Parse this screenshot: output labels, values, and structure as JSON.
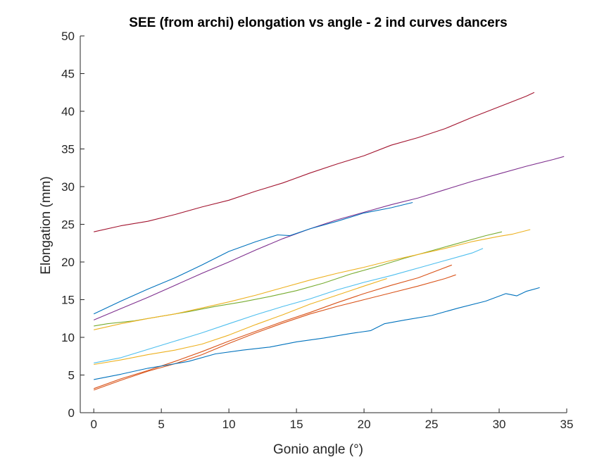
{
  "chart_data": {
    "type": "line",
    "title": "SEE (from archi) elongation vs angle - 2 ind curves dancers",
    "xlabel": "Gonio angle (°)",
    "ylabel": "Elongation (mm)",
    "xlim": [
      -1,
      35
    ],
    "ylim": [
      0,
      50
    ],
    "xticks": [
      "0",
      "5",
      "10",
      "15",
      "20",
      "25",
      "30",
      "35"
    ],
    "yticks": [
      "0",
      "5",
      "10",
      "15",
      "20",
      "25",
      "30",
      "35",
      "40",
      "45",
      "50"
    ],
    "grid": false,
    "legend": "none",
    "series": [
      {
        "color": "#A2142F",
        "x": [
          0,
          2,
          4,
          6,
          8,
          10,
          12,
          14,
          16,
          18,
          20,
          22,
          24,
          26,
          28,
          30,
          32,
          32.6
        ],
        "y": [
          24.0,
          24.8,
          25.4,
          26.3,
          27.3,
          28.2,
          29.4,
          30.5,
          31.8,
          33.0,
          34.1,
          35.5,
          36.5,
          37.7,
          39.2,
          40.6,
          42.0,
          42.5
        ]
      },
      {
        "color": "#7E2F8E",
        "x": [
          0,
          2,
          4,
          6,
          8,
          10,
          12,
          14,
          16,
          18,
          20,
          22,
          24,
          26,
          28,
          30,
          32,
          34,
          34.8
        ],
        "y": [
          12.3,
          13.8,
          15.3,
          16.9,
          18.5,
          20.0,
          21.6,
          23.1,
          24.4,
          25.6,
          26.6,
          27.6,
          28.5,
          29.6,
          30.7,
          31.7,
          32.7,
          33.6,
          34.0
        ]
      },
      {
        "color": "#0072BD",
        "x": [
          0,
          2,
          4,
          6,
          8,
          10,
          12,
          13.6,
          14.5,
          16,
          18,
          20,
          22,
          23.6
        ],
        "y": [
          13.1,
          14.8,
          16.4,
          17.9,
          19.6,
          21.4,
          22.7,
          23.6,
          23.5,
          24.4,
          25.4,
          26.5,
          27.2,
          27.9
        ]
      },
      {
        "color": "#77AC30",
        "x": [
          0,
          1,
          3,
          5,
          7,
          9,
          11,
          13,
          15,
          17,
          19,
          21,
          23,
          25,
          27,
          29,
          30.2
        ],
        "y": [
          11.5,
          11.8,
          12.2,
          12.8,
          13.4,
          14.1,
          14.7,
          15.4,
          16.2,
          17.2,
          18.4,
          19.4,
          20.5,
          21.5,
          22.5,
          23.5,
          24.0
        ]
      },
      {
        "color": "#EDB120",
        "x": [
          0,
          2,
          4,
          6,
          8,
          10,
          12,
          14,
          16,
          18,
          20,
          22,
          24,
          26,
          28,
          30,
          31,
          32.3
        ],
        "y": [
          11.0,
          11.8,
          12.5,
          13.1,
          13.9,
          14.7,
          15.6,
          16.6,
          17.6,
          18.5,
          19.3,
          20.2,
          21.0,
          21.8,
          22.7,
          23.4,
          23.7,
          24.3
        ]
      },
      {
        "color": "#4DBEEE",
        "x": [
          0,
          2,
          4,
          6,
          8,
          10,
          12,
          14,
          16,
          18,
          20,
          22,
          24,
          26,
          28,
          28.8
        ],
        "y": [
          6.6,
          7.3,
          8.4,
          9.5,
          10.6,
          11.8,
          13.0,
          14.1,
          15.1,
          16.3,
          17.3,
          18.2,
          19.2,
          20.2,
          21.2,
          21.8
        ]
      },
      {
        "color": "#EDB120",
        "x": [
          0,
          2,
          4,
          6,
          8,
          10,
          12,
          14,
          16,
          18,
          20,
          21.7
        ],
        "y": [
          6.4,
          7.0,
          7.7,
          8.3,
          9.1,
          10.3,
          11.7,
          13.0,
          14.4,
          15.6,
          16.8,
          17.8
        ]
      },
      {
        "color": "#D95319",
        "x": [
          0,
          2,
          4,
          6,
          8,
          10,
          12,
          14,
          16,
          18,
          20,
          22,
          24,
          26.5
        ],
        "y": [
          3.2,
          4.5,
          5.6,
          6.8,
          8.1,
          9.5,
          10.8,
          12.1,
          13.3,
          14.6,
          15.8,
          16.9,
          17.9,
          19.6
        ]
      },
      {
        "color": "#D95319",
        "x": [
          0,
          2,
          4,
          6,
          8,
          10,
          12,
          14,
          16,
          18,
          20,
          22,
          24,
          26,
          26.8
        ],
        "y": [
          3.0,
          4.3,
          5.5,
          6.5,
          7.7,
          9.2,
          10.6,
          11.9,
          13.1,
          14.1,
          15.0,
          15.9,
          16.8,
          17.8,
          18.3
        ]
      },
      {
        "color": "#0072BD",
        "x": [
          0,
          2,
          4,
          6,
          7,
          9,
          11,
          13,
          15,
          17,
          19,
          20.5,
          21.5,
          23,
          25,
          27,
          29,
          30.5,
          31.3,
          32,
          33
        ],
        "y": [
          4.4,
          5.1,
          5.9,
          6.5,
          6.8,
          7.8,
          8.3,
          8.7,
          9.4,
          9.9,
          10.5,
          10.9,
          11.8,
          12.3,
          12.9,
          13.9,
          14.8,
          15.8,
          15.5,
          16.1,
          16.6
        ]
      }
    ]
  }
}
